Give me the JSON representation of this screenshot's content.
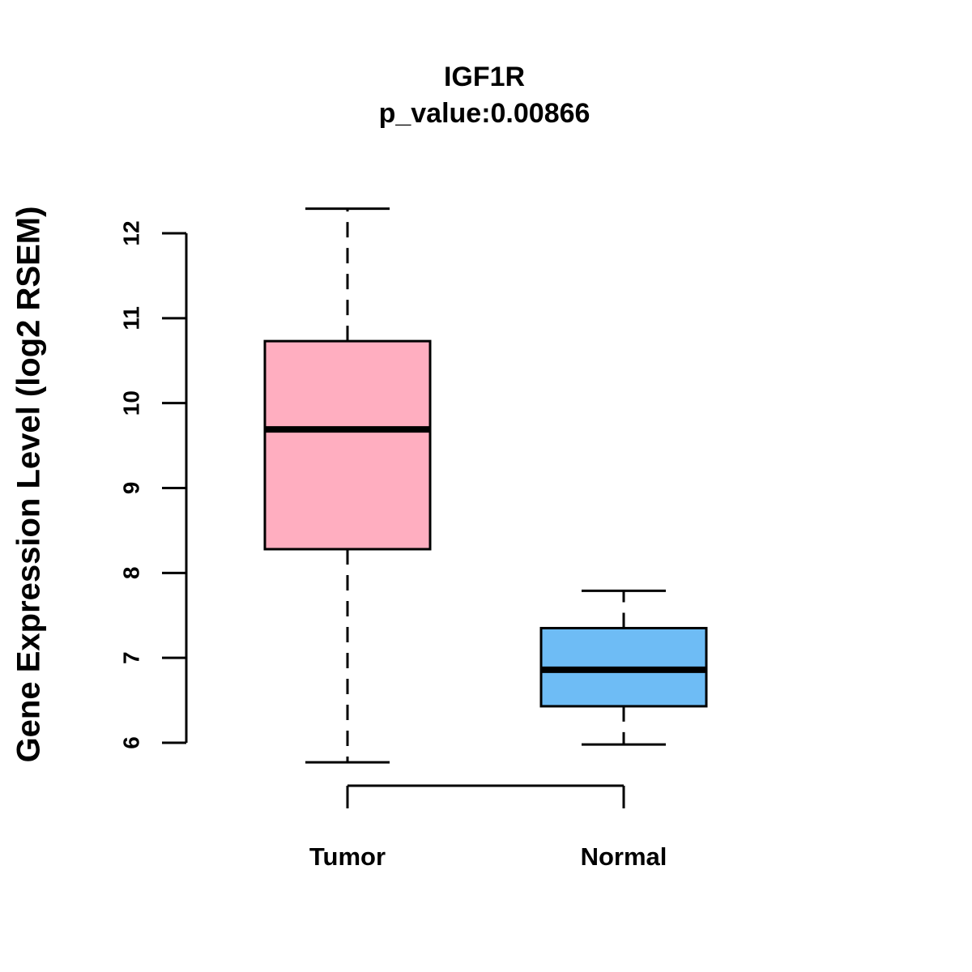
{
  "chart_data": {
    "type": "boxplot",
    "title": "IGF1R",
    "subtitle": "p_value:0.00866",
    "p_value": 0.00866,
    "gene": "IGF1R",
    "ylabel": "Gene Expression Level (log2 RSEM)",
    "xlabel": "",
    "categories": [
      "Tumor",
      "Normal"
    ],
    "series": [
      {
        "name": "Tumor",
        "min": 5.77,
        "q1": 8.28,
        "median": 9.69,
        "q3": 10.73,
        "max": 12.29,
        "color": "#FFAEC0"
      },
      {
        "name": "Normal",
        "min": 5.98,
        "q1": 6.43,
        "median": 6.86,
        "q3": 7.35,
        "max": 7.79,
        "color": "#6EBCF5"
      }
    ],
    "y_ticks": [
      6,
      7,
      8,
      9,
      10,
      11,
      12
    ],
    "ylim": [
      6,
      12
    ],
    "grid": false,
    "legend": "none",
    "whisker_style": "dashed",
    "bracket": {
      "connects": [
        "Tumor",
        "Normal"
      ]
    },
    "colors": {
      "tumor_fill": "#FFAEC0",
      "normal_fill": "#6EBCF5",
      "stroke": "#000000",
      "background": "#FFFFFF"
    }
  }
}
